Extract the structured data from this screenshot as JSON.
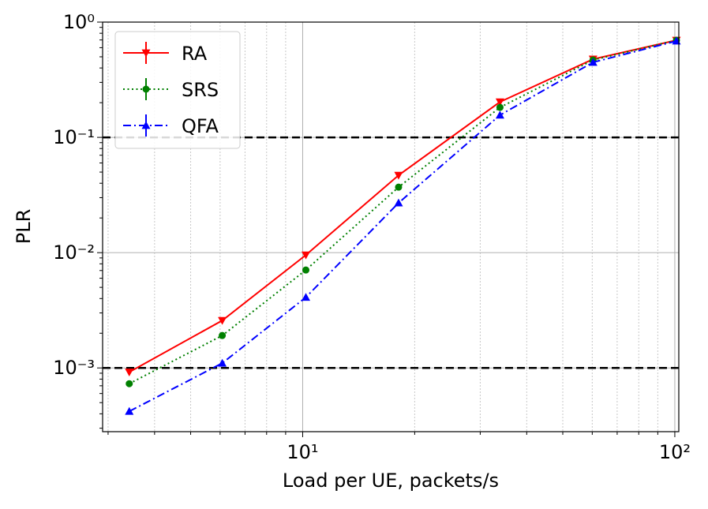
{
  "chart_data": {
    "type": "line",
    "xlabel": "Load per UE, packets/s",
    "ylabel": "PLR",
    "xscale": "log",
    "yscale": "log",
    "xlim": [
      2.9,
      102.5
    ],
    "ylim": [
      0.00028,
      1
    ],
    "xticks": [
      {
        "value": 10,
        "label": "10¹"
      },
      {
        "value": 100,
        "label": "10²"
      }
    ],
    "yticks": [
      {
        "value": 0.001,
        "label": "10⁻³"
      },
      {
        "value": 0.01,
        "label": "10⁻²"
      },
      {
        "value": 0.1,
        "label": "10⁻¹"
      },
      {
        "value": 1,
        "label": "10⁰"
      }
    ],
    "xminor": [
      3,
      4,
      5,
      6,
      7,
      8,
      9,
      20,
      30,
      40,
      50,
      60,
      70,
      80,
      90
    ],
    "yminor": [
      0.0003,
      0.0004,
      0.0005,
      0.0006,
      0.0007,
      0.0008,
      0.0009,
      0.002,
      0.003,
      0.004,
      0.005,
      0.006,
      0.007,
      0.008,
      0.009,
      0.02,
      0.03,
      0.04,
      0.05,
      0.06,
      0.07,
      0.08,
      0.09,
      0.2,
      0.3,
      0.4,
      0.5,
      0.6,
      0.7,
      0.8,
      0.9
    ],
    "hlines": [
      0.1,
      0.001
    ],
    "grid": true,
    "legend": "upper left",
    "x": [
      3.42,
      6.08,
      10.2,
      18.1,
      33.9,
      60.3,
      101
    ],
    "series": [
      {
        "name": "RA",
        "color": "#ff0000",
        "dash": "solid",
        "marker": "v",
        "values": [
          0.00092,
          0.00258,
          0.00954,
          0.0469,
          0.203,
          0.477,
          0.696
        ]
      },
      {
        "name": "SRS",
        "color": "#008000",
        "dash": "dotted",
        "marker": "o",
        "values": [
          0.00073,
          0.00191,
          0.00707,
          0.037,
          0.182,
          0.469,
          0.696
        ]
      },
      {
        "name": "QFA",
        "color": "#0000ff",
        "dash": "dashdot",
        "marker": "^",
        "values": [
          0.00042,
          0.0011,
          0.0041,
          0.027,
          0.156,
          0.448,
          0.685
        ]
      }
    ]
  }
}
